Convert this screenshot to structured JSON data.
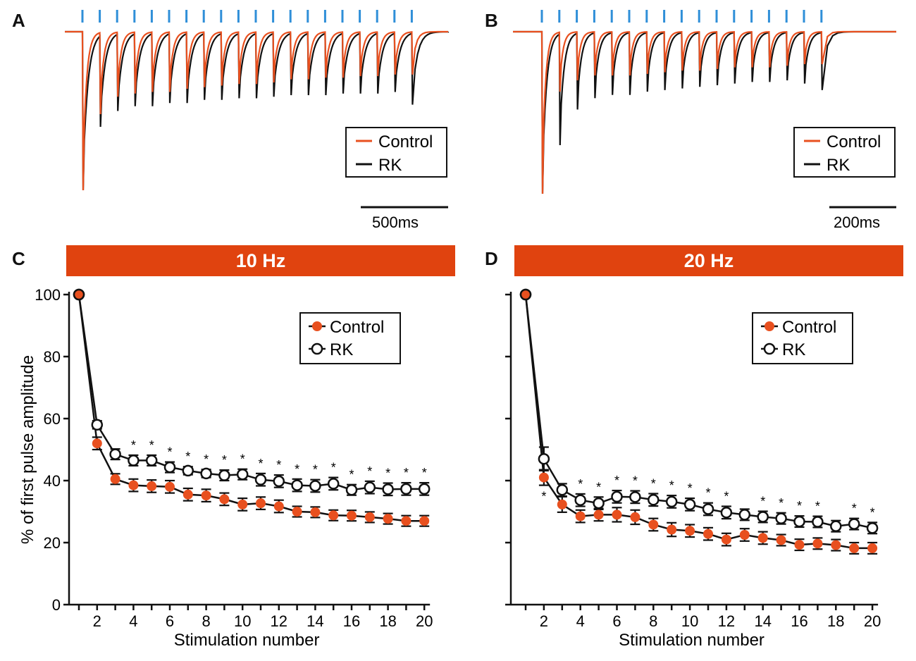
{
  "panels": {
    "A": {
      "letter": "A",
      "scale_bar": "500ms",
      "legend": [
        "Control",
        "RK"
      ],
      "n_pulses": 20
    },
    "B": {
      "letter": "B",
      "scale_bar": "200ms",
      "legend": [
        "Control",
        "RK"
      ],
      "n_pulses": 17
    },
    "C": {
      "letter": "C",
      "banner": "10 Hz"
    },
    "D": {
      "letter": "D",
      "banner": "20 Hz"
    }
  },
  "colors": {
    "control": "#e8501f",
    "rk": "#111111",
    "stim": "#2f8fd8",
    "banner": "#e0430f"
  },
  "chart_data": [
    {
      "type": "line",
      "panel": "C",
      "title": "10 Hz",
      "xlabel": "Stimulation number",
      "ylabel": "% of first pulse amplitude",
      "xlim": [
        0.5,
        20.5
      ],
      "ylim": [
        0,
        100
      ],
      "xticks": [
        2,
        4,
        6,
        8,
        10,
        12,
        14,
        16,
        18,
        20
      ],
      "yticks": [
        0,
        20,
        40,
        60,
        80,
        100
      ],
      "series": [
        {
          "name": "Control",
          "marker": "filled-circle",
          "x": [
            1,
            2,
            3,
            4,
            5,
            6,
            7,
            8,
            9,
            10,
            11,
            12,
            13,
            14,
            15,
            16,
            17,
            18,
            19,
            20
          ],
          "y": [
            100,
            52,
            40.5,
            38.5,
            38.2,
            38,
            35.5,
            35.2,
            34,
            32.3,
            32.7,
            31.7,
            30,
            29.8,
            28.8,
            28.7,
            28.2,
            27.7,
            27,
            27
          ],
          "err": [
            0,
            2,
            1.7,
            2,
            2,
            2,
            2,
            2,
            2,
            2,
            2,
            2,
            1.7,
            1.7,
            1.7,
            1.7,
            1.7,
            1.7,
            1.7,
            1.7
          ]
        },
        {
          "name": "RK",
          "marker": "open-circle",
          "x": [
            1,
            2,
            3,
            4,
            5,
            6,
            7,
            8,
            9,
            10,
            11,
            12,
            13,
            14,
            15,
            16,
            17,
            18,
            19,
            20
          ],
          "y": [
            100,
            58,
            48.5,
            46.5,
            46.5,
            44.3,
            43.2,
            42.3,
            41.7,
            42,
            40.3,
            39.8,
            38.5,
            38.3,
            39,
            37,
            37.8,
            37.2,
            37.3,
            37.3
          ],
          "err": [
            0,
            1.3,
            1.7,
            1.7,
            1.7,
            1.7,
            1.3,
            1.3,
            1.7,
            1.7,
            2,
            2,
            2,
            2,
            2,
            1.7,
            2,
            2,
            2,
            2
          ]
        }
      ],
      "significance": [
        {
          "x": 4,
          "label": "*"
        },
        {
          "x": 5,
          "label": "*"
        },
        {
          "x": 6,
          "label": "*"
        },
        {
          "x": 7,
          "label": "*"
        },
        {
          "x": 8,
          "label": "*"
        },
        {
          "x": 9,
          "label": "*"
        },
        {
          "x": 10,
          "label": "*"
        },
        {
          "x": 11,
          "label": "*"
        },
        {
          "x": 12,
          "label": "*"
        },
        {
          "x": 13,
          "label": "*"
        },
        {
          "x": 14,
          "label": "*"
        },
        {
          "x": 15,
          "label": "*"
        },
        {
          "x": 16,
          "label": "*"
        },
        {
          "x": 17,
          "label": "*"
        },
        {
          "x": 18,
          "label": "*"
        },
        {
          "x": 19,
          "label": "*"
        },
        {
          "x": 20,
          "label": "*"
        }
      ],
      "legend": [
        "Control",
        "RK"
      ],
      "legend_position": "top-right"
    },
    {
      "type": "line",
      "panel": "D",
      "title": "20 Hz",
      "xlabel": "Stimulation number",
      "ylabel": "",
      "xlim": [
        0.5,
        20.5
      ],
      "ylim": [
        0,
        100
      ],
      "xticks": [
        2,
        4,
        6,
        8,
        10,
        12,
        14,
        16,
        18,
        20
      ],
      "yticks": [
        0,
        20,
        40,
        60,
        80,
        100
      ],
      "series": [
        {
          "name": "Control",
          "marker": "filled-circle",
          "x": [
            1,
            2,
            3,
            4,
            5,
            6,
            7,
            8,
            9,
            10,
            11,
            12,
            13,
            14,
            15,
            16,
            17,
            18,
            19,
            20
          ],
          "y": [
            100,
            41,
            32.3,
            28.5,
            29,
            29,
            28.2,
            25.8,
            24.2,
            23.8,
            22.8,
            21,
            22.5,
            21.5,
            20.8,
            19.3,
            19.7,
            19.2,
            18.2,
            18.2
          ],
          "err": [
            0,
            2.5,
            2.5,
            2,
            2,
            2.3,
            2.3,
            2,
            2.2,
            2,
            2,
            2,
            2,
            2,
            1.8,
            1.8,
            1.8,
            1.8,
            1.8,
            1.8
          ]
        },
        {
          "name": "RK",
          "marker": "open-circle",
          "x": [
            1,
            2,
            3,
            4,
            5,
            6,
            7,
            8,
            9,
            10,
            11,
            12,
            13,
            14,
            15,
            16,
            17,
            18,
            19,
            20
          ],
          "y": [
            100,
            47,
            37,
            33.7,
            32.7,
            34.8,
            34.7,
            33.8,
            33.2,
            32.3,
            30.8,
            29.7,
            29,
            28.3,
            27.8,
            26.8,
            26.7,
            25.3,
            26,
            24.7
          ],
          "err": [
            0,
            3.8,
            2,
            2,
            2,
            2,
            2,
            2,
            2,
            2,
            2,
            2,
            1.8,
            1.8,
            1.8,
            1.8,
            1.8,
            1.8,
            1.8,
            1.8
          ]
        }
      ],
      "significance": [
        {
          "x": 2,
          "label": "*",
          "position": "below"
        },
        {
          "x": 4,
          "label": "*"
        },
        {
          "x": 5,
          "label": "*"
        },
        {
          "x": 6,
          "label": "*"
        },
        {
          "x": 7,
          "label": "*"
        },
        {
          "x": 8,
          "label": "*"
        },
        {
          "x": 9,
          "label": "*"
        },
        {
          "x": 10,
          "label": "*"
        },
        {
          "x": 11,
          "label": "*"
        },
        {
          "x": 12,
          "label": "*"
        },
        {
          "x": 14,
          "label": "*"
        },
        {
          "x": 15,
          "label": "*"
        },
        {
          "x": 16,
          "label": "*"
        },
        {
          "x": 17,
          "label": "*"
        },
        {
          "x": 19,
          "label": "*"
        },
        {
          "x": 20,
          "label": "*"
        }
      ],
      "legend": [
        "Control",
        "RK"
      ],
      "legend_position": "top-right"
    }
  ]
}
